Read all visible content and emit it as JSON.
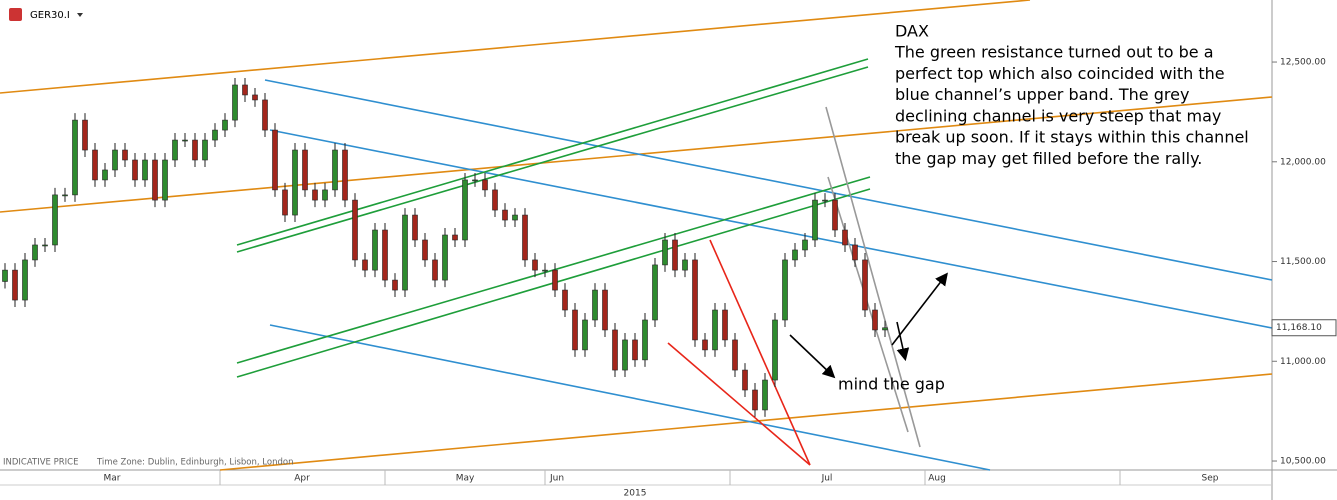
{
  "chart_data": {
    "type": "candlestick",
    "symbol": "GER30.I",
    "footer": "INDICATIVE PRICE",
    "time_zone": "Time Zone: Dublin, Edinburgh, Lisbon, London",
    "year": "2015",
    "annotation": {
      "title": "DAX",
      "lines": [
        "The green resistance turned out to be a",
        "perfect top which also coincided with the",
        "blue channel’s upper band. The grey",
        "declining channel is very steep that may",
        "break up soon. If it stays within this channel",
        "the gap may get filled before the rally."
      ]
    },
    "gap_note": "mind the gap",
    "last_price": {
      "value": 11168.1,
      "label": "11,168.10"
    },
    "up_color": "#2e8b2e",
    "down_color": "#a3261c",
    "ylim": [
      10455,
      12811
    ],
    "yticks": [
      {
        "value": 12500,
        "label": "12,500.00"
      },
      {
        "value": 12000,
        "label": "12,000.00"
      },
      {
        "value": 11500,
        "label": "11,500.00"
      },
      {
        "value": 11000,
        "label": "11,000.00"
      },
      {
        "value": 10500,
        "label": "10,500.00"
      }
    ],
    "xlim": [
      -0.5,
      126.5
    ],
    "xticks": [
      {
        "value": 10.7,
        "label": "Mar"
      },
      {
        "value": 29.7,
        "label": "Apr"
      },
      {
        "value": 46,
        "label": "May"
      },
      {
        "value": 55.2,
        "label": "Jun"
      },
      {
        "value": 82.2,
        "label": "Jul"
      },
      {
        "value": 93.2,
        "label": "Aug"
      },
      {
        "value": 120.5,
        "label": "Sep"
      }
    ],
    "x": [
      0,
      1,
      2,
      3,
      4,
      5,
      6,
      7,
      8,
      9,
      10,
      11,
      12,
      13,
      14,
      15,
      16,
      17,
      18,
      19,
      20,
      21,
      22,
      23,
      24,
      25,
      26,
      27,
      28,
      29,
      30,
      31,
      32,
      33,
      34,
      35,
      36,
      37,
      38,
      39,
      40,
      41,
      42,
      43,
      44,
      45,
      46,
      47,
      48,
      49,
      50,
      51,
      52,
      53,
      54,
      55,
      56,
      57,
      58,
      59,
      60,
      61,
      62,
      63,
      64,
      65,
      66,
      67,
      68,
      69,
      70,
      71,
      72,
      73,
      74,
      75,
      76,
      77,
      78,
      79,
      80,
      81,
      82,
      83,
      84,
      85,
      86,
      87,
      88
    ],
    "open": [
      11400,
      11457,
      11307,
      11508,
      11583,
      11583,
      11834,
      11834,
      12209,
      12059,
      11909,
      11959,
      12059,
      12009,
      11909,
      12009,
      11808,
      12009,
      12109,
      12109,
      12009,
      12109,
      12159,
      12209,
      12385,
      12335,
      12310,
      12159,
      11859,
      11733,
      12059,
      11859,
      11808,
      11859,
      12059,
      11808,
      11508,
      11457,
      11658,
      11407,
      11357,
      11733,
      11608,
      11508,
      11407,
      11633,
      11608,
      11909,
      11909,
      11859,
      11758,
      11708,
      11733,
      11508,
      11457,
      11457,
      11357,
      11257,
      11057,
      11207,
      11357,
      11157,
      10956,
      11107,
      11007,
      11207,
      11483,
      11608,
      11457,
      11508,
      11107,
      11057,
      11257,
      11107,
      10956,
      10856,
      10756,
      10906,
      11207,
      11508,
      11558,
      11608,
      11808,
      11808,
      11658,
      11583,
      11508,
      11257,
      11157
    ],
    "high": [
      11492,
      11492,
      11543,
      11618,
      11618,
      11869,
      11869,
      12244,
      12244,
      12094,
      11994,
      12094,
      12094,
      12044,
      12044,
      12044,
      12044,
      12144,
      12144,
      12144,
      12144,
      12194,
      12244,
      12420,
      12420,
      12370,
      12345,
      12194,
      11894,
      12094,
      12094,
      11894,
      11894,
      12094,
      12094,
      11843,
      11543,
      11693,
      11693,
      11442,
      11768,
      11768,
      11643,
      11543,
      11668,
      11668,
      11944,
      11944,
      11944,
      11894,
      11793,
      11768,
      11768,
      11543,
      11492,
      11492,
      11392,
      11292,
      11242,
      11392,
      11392,
      11192,
      11142,
      11142,
      11242,
      11518,
      11643,
      11643,
      11543,
      11543,
      11142,
      11292,
      11292,
      11142,
      10991,
      10891,
      10941,
      11242,
      11543,
      11593,
      11643,
      11843,
      11843,
      11843,
      11693,
      11618,
      11543,
      11292,
      11203
    ],
    "low": [
      11365,
      11272,
      11272,
      11473,
      11548,
      11548,
      11799,
      11799,
      12024,
      11874,
      11874,
      11924,
      11974,
      11874,
      11874,
      11773,
      11773,
      11974,
      12074,
      11974,
      11974,
      12074,
      12124,
      12174,
      12300,
      12275,
      12124,
      11824,
      11698,
      11698,
      11824,
      11773,
      11773,
      11824,
      11773,
      11473,
      11422,
      11422,
      11372,
      11322,
      11322,
      11573,
      11473,
      11372,
      11372,
      11573,
      11573,
      11874,
      11824,
      11723,
      11673,
      11673,
      11473,
      11422,
      11422,
      11322,
      11222,
      11022,
      11022,
      11172,
      11122,
      10921,
      10921,
      10972,
      10972,
      11172,
      11448,
      11422,
      11422,
      11072,
      11022,
      11022,
      11072,
      10921,
      10821,
      10721,
      10721,
      10871,
      11172,
      11473,
      11523,
      11573,
      11773,
      11623,
      11548,
      11473,
      11222,
      11122,
      11122
    ],
    "close": [
      11457,
      11307,
      11508,
      11583,
      11583,
      11834,
      11834,
      12209,
      12059,
      11909,
      11959,
      12059,
      12009,
      11909,
      12009,
      11808,
      12009,
      12109,
      12109,
      12009,
      12109,
      12159,
      12209,
      12385,
      12335,
      12310,
      12159,
      11859,
      11733,
      12059,
      11859,
      11808,
      11859,
      12059,
      11808,
      11508,
      11457,
      11658,
      11407,
      11357,
      11733,
      11608,
      11508,
      11407,
      11633,
      11608,
      11909,
      11909,
      11859,
      11758,
      11708,
      11733,
      11508,
      11457,
      11457,
      11357,
      11257,
      11057,
      11207,
      11357,
      11157,
      10956,
      11107,
      11007,
      11207,
      11483,
      11608,
      11457,
      11508,
      11107,
      11057,
      11257,
      11107,
      10956,
      10856,
      10756,
      10906,
      11207,
      11508,
      11558,
      11608,
      11808,
      11808,
      11658,
      11583,
      11508,
      11257,
      11157,
      11168
    ]
  }
}
